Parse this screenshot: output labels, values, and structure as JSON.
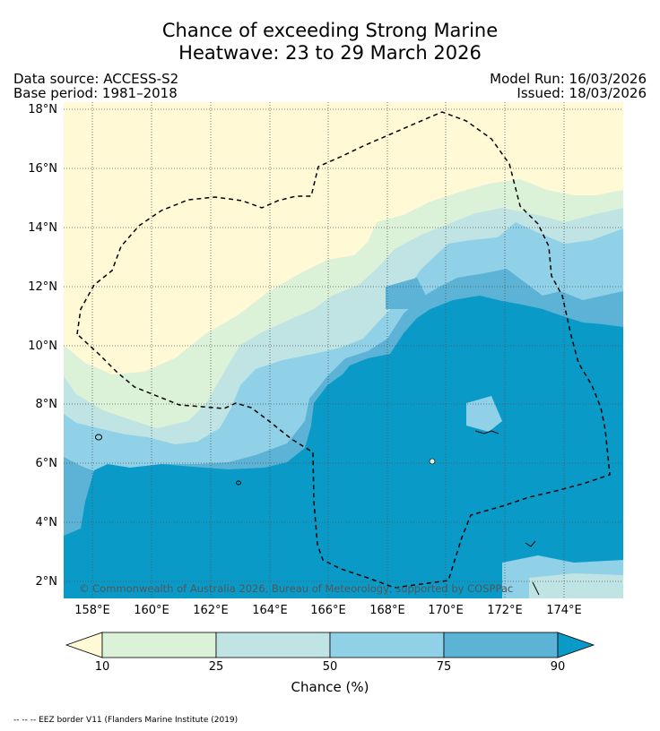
{
  "title": {
    "line1": "Chance of exceeding Strong Marine",
    "line2": "Heatwave: 23 to 29 March 2026"
  },
  "meta": {
    "data_source": "Data source: ACCESS-S2",
    "base_period": "Base period: 1981–2018",
    "model_run": "Model Run: 16/03/2026",
    "issued": "Issued: 18/03/2026"
  },
  "map": {
    "lat_labels": [
      "18°N",
      "16°N",
      "14°N",
      "12°N",
      "10°N",
      "8°N",
      "6°N",
      "4°N",
      "2°N"
    ],
    "lon_labels": [
      "158°E",
      "160°E",
      "162°E",
      "164°E",
      "166°E",
      "168°E",
      "170°E",
      "172°E",
      "174°E"
    ],
    "copyright": "© Commonwealth of Australia 2026, Bureau of Meteorology, supported by COSPPac"
  },
  "colorbar": {
    "ticks": [
      "10",
      "25",
      "50",
      "75",
      "90"
    ],
    "title": "Chance (%)",
    "colors": {
      "below_10": "#fff9d6",
      "10_25": "#dcf2d8",
      "25_50": "#c0e3e4",
      "50_75": "#90d1e8",
      "75_90": "#5cb3d5",
      "above_90": "#0a9ac8"
    }
  },
  "footnote": "-- -- -- EEZ border V11 (Flanders Marine Institute (2019)"
}
